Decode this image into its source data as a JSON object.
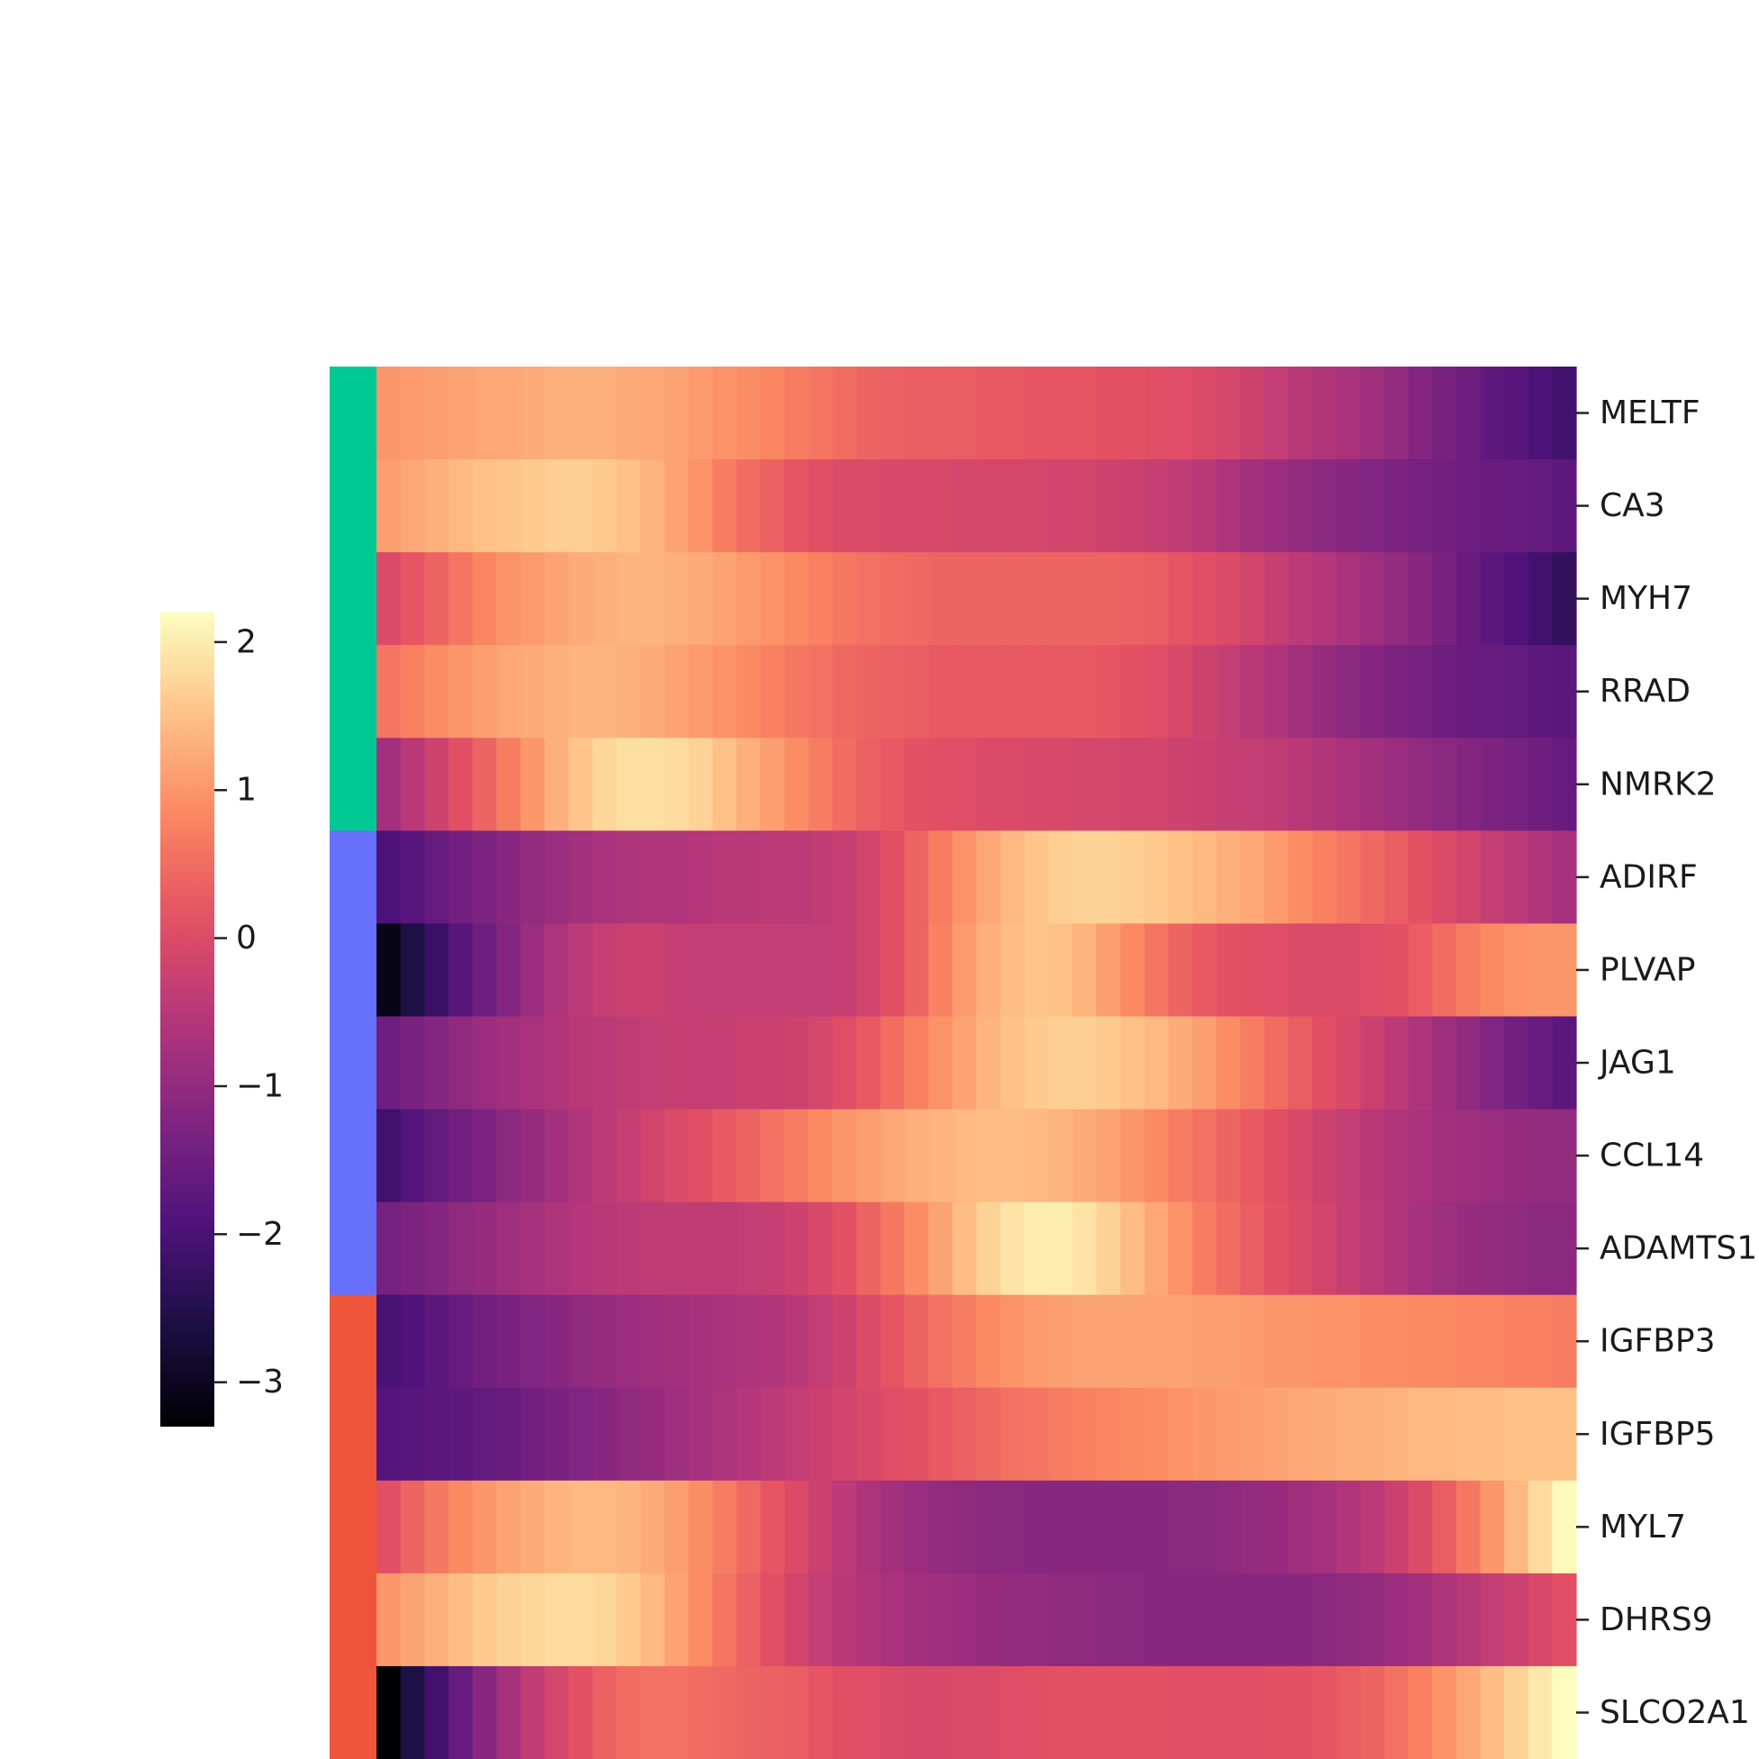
{
  "chart_data": {
    "type": "heatmap",
    "colormap": "magma",
    "rows": [
      "MELTF",
      "CA3",
      "MYH7",
      "RRAD",
      "NMRK2",
      "ADIRF",
      "PLVAP",
      "JAG1",
      "CCL14",
      "ADAMTS1",
      "IGFBP3",
      "IGFBP5",
      "MYL7",
      "DHRS9",
      "SLCO2A1"
    ],
    "row_groups": [
      {
        "color": "#00c994",
        "rows": [
          "MELTF",
          "CA3",
          "MYH7",
          "RRAD",
          "NMRK2"
        ]
      },
      {
        "color": "#6670fa",
        "rows": [
          "ADIRF",
          "PLVAP",
          "JAG1",
          "CCL14",
          "ADAMTS1"
        ]
      },
      {
        "color": "#ee553b",
        "rows": [
          "IGFBP3",
          "IGFBP5",
          "MYL7",
          "DHRS9",
          "SLCO2A1"
        ]
      }
    ],
    "n_columns": 50,
    "colorbar": {
      "vmin": -3.3,
      "vmax": 2.2,
      "ticks": [
        -3,
        -2,
        -1,
        0,
        1,
        2
      ],
      "tick_labels": [
        "−3",
        "−2",
        "−1",
        "0",
        "1",
        "2"
      ]
    },
    "values": [
      [
        1.0,
        1.05,
        1.1,
        1.15,
        1.2,
        1.2,
        1.25,
        1.3,
        1.3,
        1.3,
        1.25,
        1.2,
        1.15,
        1.05,
        0.95,
        0.9,
        0.8,
        0.7,
        0.6,
        0.5,
        0.4,
        0.35,
        0.3,
        0.3,
        0.3,
        0.25,
        0.25,
        0.2,
        0.2,
        0.2,
        0.15,
        0.15,
        0.1,
        0.05,
        0.0,
        -0.1,
        -0.2,
        -0.35,
        -0.5,
        -0.6,
        -0.7,
        -0.85,
        -1.0,
        -1.2,
        -1.35,
        -1.5,
        -1.7,
        -1.8,
        -1.95,
        -2.1
      ],
      [
        1.1,
        1.2,
        1.3,
        1.4,
        1.5,
        1.55,
        1.6,
        1.65,
        1.65,
        1.6,
        1.5,
        1.35,
        1.15,
        0.95,
        0.7,
        0.5,
        0.35,
        0.2,
        0.1,
        0.0,
        0.0,
        -0.05,
        -0.05,
        -0.05,
        -0.1,
        -0.1,
        -0.1,
        -0.1,
        -0.15,
        -0.15,
        -0.2,
        -0.25,
        -0.3,
        -0.4,
        -0.5,
        -0.65,
        -0.8,
        -0.9,
        -1.0,
        -1.1,
        -1.15,
        -1.25,
        -1.3,
        -1.4,
        -1.45,
        -1.5,
        -1.55,
        -1.6,
        -1.65,
        -1.7
      ],
      [
        0.0,
        0.2,
        0.4,
        0.6,
        0.8,
        0.95,
        1.05,
        1.15,
        1.25,
        1.3,
        1.35,
        1.35,
        1.3,
        1.25,
        1.15,
        1.05,
        0.95,
        0.85,
        0.75,
        0.65,
        0.55,
        0.5,
        0.45,
        0.4,
        0.4,
        0.4,
        0.4,
        0.4,
        0.4,
        0.4,
        0.4,
        0.35,
        0.3,
        0.2,
        0.1,
        0.0,
        -0.15,
        -0.3,
        -0.45,
        -0.55,
        -0.7,
        -0.85,
        -1.0,
        -1.15,
        -1.35,
        -1.55,
        -1.75,
        -1.9,
        -2.1,
        -2.3
      ],
      [
        0.6,
        0.75,
        0.9,
        1.0,
        1.1,
        1.2,
        1.25,
        1.3,
        1.35,
        1.35,
        1.3,
        1.25,
        1.15,
        1.05,
        0.95,
        0.85,
        0.75,
        0.65,
        0.55,
        0.45,
        0.4,
        0.35,
        0.3,
        0.25,
        0.25,
        0.25,
        0.25,
        0.25,
        0.25,
        0.25,
        0.2,
        0.15,
        0.05,
        -0.05,
        -0.2,
        -0.35,
        -0.5,
        -0.65,
        -0.8,
        -0.95,
        -1.1,
        -1.2,
        -1.3,
        -1.4,
        -1.5,
        -1.55,
        -1.6,
        -1.65,
        -1.7,
        -1.75
      ],
      [
        -0.8,
        -0.5,
        -0.2,
        0.1,
        0.4,
        0.7,
        1.0,
        1.3,
        1.55,
        1.75,
        1.85,
        1.85,
        1.8,
        1.7,
        1.5,
        1.3,
        1.1,
        0.9,
        0.7,
        0.5,
        0.35,
        0.25,
        0.15,
        0.1,
        0.05,
        0.0,
        0.0,
        -0.05,
        -0.05,
        -0.1,
        -0.1,
        -0.15,
        -0.15,
        -0.2,
        -0.25,
        -0.3,
        -0.35,
        -0.4,
        -0.5,
        -0.6,
        -0.7,
        -0.8,
        -0.9,
        -1.0,
        -1.1,
        -1.2,
        -1.3,
        -1.4,
        -1.5,
        -1.6
      ],
      [
        -1.95,
        -1.8,
        -1.6,
        -1.45,
        -1.3,
        -1.15,
        -1.0,
        -0.9,
        -0.8,
        -0.7,
        -0.65,
        -0.6,
        -0.6,
        -0.55,
        -0.5,
        -0.5,
        -0.45,
        -0.45,
        -0.4,
        -0.3,
        -0.15,
        0.1,
        0.4,
        0.7,
        0.95,
        1.2,
        1.4,
        1.55,
        1.65,
        1.7,
        1.7,
        1.65,
        1.6,
        1.5,
        1.4,
        1.3,
        1.2,
        1.05,
        0.9,
        0.75,
        0.6,
        0.45,
        0.3,
        0.15,
        0.0,
        -0.15,
        -0.3,
        -0.45,
        -0.6,
        -0.75
      ],
      [
        -3.1,
        -2.6,
        -2.2,
        -1.8,
        -1.5,
        -1.2,
        -0.9,
        -0.65,
        -0.45,
        -0.3,
        -0.25,
        -0.25,
        -0.3,
        -0.35,
        -0.35,
        -0.35,
        -0.35,
        -0.35,
        -0.35,
        -0.3,
        -0.15,
        0.1,
        0.4,
        0.75,
        1.05,
        1.3,
        1.45,
        1.55,
        1.5,
        1.35,
        1.1,
        0.85,
        0.6,
        0.4,
        0.25,
        0.15,
        0.1,
        0.05,
        0.0,
        0.0,
        0.0,
        0.05,
        0.15,
        0.3,
        0.5,
        0.7,
        0.85,
        0.95,
        1.0,
        1.0
      ],
      [
        -1.5,
        -1.35,
        -1.2,
        -1.05,
        -0.9,
        -0.8,
        -0.7,
        -0.6,
        -0.5,
        -0.45,
        -0.4,
        -0.35,
        -0.3,
        -0.3,
        -0.3,
        -0.25,
        -0.25,
        -0.2,
        -0.1,
        0.05,
        0.25,
        0.5,
        0.75,
        0.95,
        1.15,
        1.35,
        1.5,
        1.6,
        1.65,
        1.65,
        1.6,
        1.5,
        1.4,
        1.25,
        1.1,
        0.9,
        0.7,
        0.5,
        0.3,
        0.1,
        -0.05,
        -0.25,
        -0.45,
        -0.65,
        -0.85,
        -1.05,
        -1.25,
        -1.45,
        -1.6,
        -1.75
      ],
      [
        -2.1,
        -1.85,
        -1.65,
        -1.45,
        -1.3,
        -1.1,
        -0.95,
        -0.8,
        -0.6,
        -0.45,
        -0.3,
        -0.15,
        0.0,
        0.1,
        0.25,
        0.4,
        0.55,
        0.7,
        0.85,
        1.0,
        1.1,
        1.2,
        1.3,
        1.35,
        1.4,
        1.45,
        1.45,
        1.4,
        1.35,
        1.25,
        1.15,
        1.0,
        0.85,
        0.7,
        0.55,
        0.4,
        0.25,
        0.1,
        -0.05,
        -0.2,
        -0.35,
        -0.5,
        -0.6,
        -0.7,
        -0.8,
        -0.85,
        -0.9,
        -0.95,
        -1.0,
        -1.0
      ],
      [
        -1.4,
        -1.3,
        -1.2,
        -1.05,
        -0.95,
        -0.85,
        -0.75,
        -0.65,
        -0.55,
        -0.5,
        -0.45,
        -0.4,
        -0.4,
        -0.4,
        -0.4,
        -0.35,
        -0.3,
        -0.2,
        -0.05,
        0.15,
        0.4,
        0.65,
        0.9,
        1.15,
        1.45,
        1.7,
        1.9,
        2.0,
        2.0,
        1.9,
        1.7,
        1.45,
        1.2,
        0.95,
        0.7,
        0.5,
        0.3,
        0.15,
        0.0,
        -0.15,
        -0.3,
        -0.45,
        -0.6,
        -0.75,
        -0.85,
        -0.95,
        -1.0,
        -1.05,
        -1.1,
        -1.1
      ],
      [
        -2.0,
        -1.9,
        -1.75,
        -1.6,
        -1.45,
        -1.35,
        -1.25,
        -1.15,
        -1.05,
        -0.95,
        -0.9,
        -0.85,
        -0.8,
        -0.75,
        -0.7,
        -0.65,
        -0.6,
        -0.5,
        -0.35,
        -0.2,
        0.0,
        0.2,
        0.4,
        0.55,
        0.7,
        0.85,
        0.95,
        1.05,
        1.1,
        1.15,
        1.15,
        1.15,
        1.15,
        1.15,
        1.1,
        1.1,
        1.05,
        1.0,
        1.0,
        0.95,
        0.95,
        0.9,
        0.9,
        0.85,
        0.85,
        0.8,
        0.8,
        0.75,
        0.75,
        0.7
      ],
      [
        -1.85,
        -1.8,
        -1.75,
        -1.7,
        -1.65,
        -1.55,
        -1.45,
        -1.35,
        -1.25,
        -1.15,
        -1.05,
        -0.95,
        -0.85,
        -0.75,
        -0.65,
        -0.55,
        -0.45,
        -0.35,
        -0.25,
        -0.15,
        -0.05,
        0.05,
        0.15,
        0.25,
        0.35,
        0.45,
        0.55,
        0.6,
        0.7,
        0.75,
        0.8,
        0.85,
        0.9,
        0.95,
        1.0,
        1.05,
        1.1,
        1.15,
        1.2,
        1.25,
        1.3,
        1.3,
        1.35,
        1.4,
        1.4,
        1.45,
        1.45,
        1.5,
        1.5,
        1.5
      ],
      [
        0.1,
        0.4,
        0.65,
        0.85,
        1.0,
        1.15,
        1.25,
        1.35,
        1.4,
        1.4,
        1.35,
        1.25,
        1.1,
        0.9,
        0.7,
        0.45,
        0.2,
        0.0,
        -0.25,
        -0.45,
        -0.65,
        -0.8,
        -0.9,
        -1.0,
        -1.05,
        -1.1,
        -1.1,
        -1.15,
        -1.15,
        -1.15,
        -1.15,
        -1.15,
        -1.15,
        -1.1,
        -1.1,
        -1.05,
        -1.0,
        -0.95,
        -0.85,
        -0.75,
        -0.6,
        -0.45,
        -0.25,
        0.0,
        0.3,
        0.65,
        1.0,
        1.4,
        1.8,
        2.15
      ],
      [
        1.0,
        1.15,
        1.3,
        1.45,
        1.6,
        1.7,
        1.75,
        1.8,
        1.8,
        1.75,
        1.6,
        1.4,
        1.15,
        0.9,
        0.6,
        0.35,
        0.1,
        -0.15,
        -0.35,
        -0.5,
        -0.6,
        -0.7,
        -0.8,
        -0.85,
        -0.9,
        -0.95,
        -1.0,
        -1.0,
        -1.05,
        -1.05,
        -1.1,
        -1.1,
        -1.15,
        -1.15,
        -1.15,
        -1.15,
        -1.15,
        -1.15,
        -1.15,
        -1.1,
        -1.05,
        -1.0,
        -0.9,
        -0.8,
        -0.65,
        -0.5,
        -0.35,
        -0.2,
        -0.05,
        0.1
      ],
      [
        -3.3,
        -2.6,
        -2.1,
        -1.6,
        -1.15,
        -0.75,
        -0.4,
        -0.1,
        0.15,
        0.35,
        0.5,
        0.55,
        0.55,
        0.5,
        0.45,
        0.4,
        0.35,
        0.3,
        0.2,
        0.1,
        0.05,
        0.0,
        -0.05,
        -0.05,
        0.0,
        0.0,
        0.05,
        0.1,
        0.15,
        0.15,
        0.15,
        0.15,
        0.15,
        0.1,
        0.1,
        0.1,
        0.1,
        0.15,
        0.15,
        0.2,
        0.3,
        0.4,
        0.55,
        0.75,
        0.95,
        1.2,
        1.45,
        1.7,
        1.95,
        2.2
      ]
    ]
  }
}
